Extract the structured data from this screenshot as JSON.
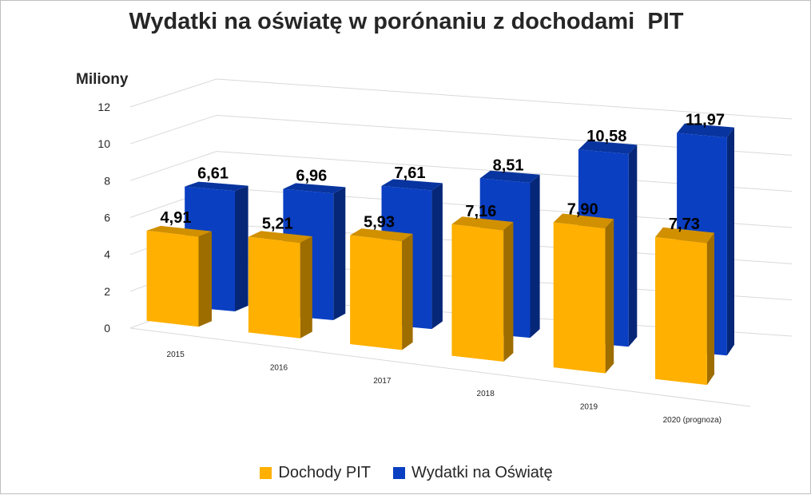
{
  "chart_data": {
    "type": "bar",
    "title": "Wydatki na oświatę w porónaniu z dochodami  PIT",
    "ylabel": "Miliony",
    "xlabel": "",
    "categories": [
      "2015",
      "2016",
      "2017",
      "2018",
      "2019",
      "2020 (prognoza)"
    ],
    "series": [
      {
        "name": "Dochody PIT",
        "color": "#FFB000",
        "values": [
          4.91,
          5.21,
          5.93,
          7.16,
          7.9,
          7.73
        ],
        "labels": [
          "4,91",
          "5,21",
          "5,93",
          "7,16",
          "7,90",
          "7,73"
        ]
      },
      {
        "name": "Wydatki na Oświatę",
        "color": "#0A3FC2",
        "values": [
          6.61,
          6.96,
          7.61,
          8.51,
          10.58,
          11.97
        ],
        "labels": [
          "6,61",
          "6,96",
          "7,61",
          "8,51",
          "10,58",
          "11,97"
        ]
      }
    ],
    "ylim": [
      0,
      12
    ],
    "yticks": [
      "0",
      "2",
      "4",
      "6",
      "8",
      "10",
      "12"
    ],
    "grid": true,
    "legend": "bottom",
    "style": "3d-column"
  }
}
